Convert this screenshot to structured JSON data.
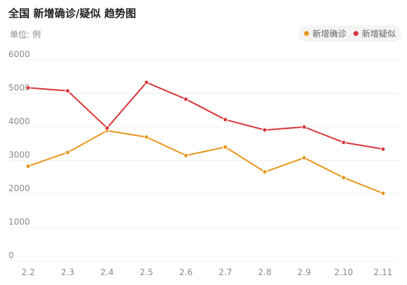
{
  "chart_data": {
    "type": "line",
    "title": "全国 新增确诊/疑似 趋势图",
    "unit_label": "单位: 例",
    "xlabel": "",
    "ylabel": "",
    "categories": [
      "2.2",
      "2.3",
      "2.4",
      "2.5",
      "2.6",
      "2.7",
      "2.8",
      "2.9",
      "2.10",
      "2.11"
    ],
    "ylim": [
      0,
      6000
    ],
    "yticks": [
      0,
      1000,
      2000,
      3000,
      4000,
      5000,
      6000
    ],
    "grid": true,
    "legend_position": "top-right",
    "series": [
      {
        "name": "新增确诊",
        "color": "#e8961c",
        "values": [
          2830,
          3240,
          3890,
          3700,
          3150,
          3400,
          2660,
          3080,
          2490,
          2020
        ]
      },
      {
        "name": "新增疑似",
        "color": "#d9363b",
        "values": [
          5170,
          5080,
          3970,
          5330,
          4830,
          4220,
          3910,
          4000,
          3540,
          3340
        ]
      }
    ]
  }
}
